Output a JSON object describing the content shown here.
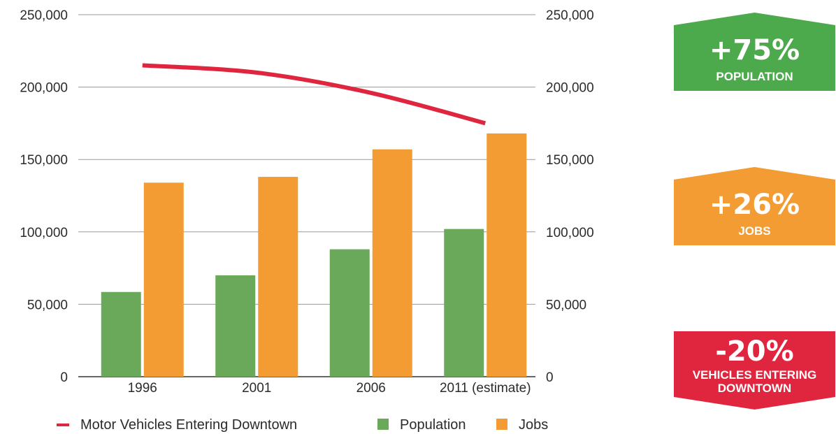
{
  "chart_data": {
    "type": "bar",
    "categories": [
      "1996",
      "2001",
      "2006",
      "2011 (estimate)"
    ],
    "series": [
      {
        "name": "Population",
        "kind": "bar",
        "color": "#6aa85a",
        "values": [
          58500,
          70000,
          88000,
          102000
        ]
      },
      {
        "name": "Jobs",
        "kind": "bar",
        "color": "#f39c33",
        "values": [
          134000,
          138000,
          157000,
          168000
        ]
      },
      {
        "name": "Motor Vehicles Entering Downtown",
        "kind": "line",
        "color": "#e0263f",
        "values": [
          215000,
          210000,
          196000,
          175000
        ]
      }
    ],
    "ylim": [
      0,
      250000
    ],
    "y_ticks": [
      "0",
      "50,000",
      "100,000",
      "150,000",
      "200,000",
      "250,000"
    ],
    "y_tick_values": [
      0,
      50000,
      100000,
      150000,
      200000,
      250000
    ],
    "right_axis": true,
    "grid": true,
    "legend": {
      "position": "bottom",
      "items": [
        {
          "label": "Motor Vehicles Entering Downtown",
          "color": "#e0263f",
          "marker": "line"
        },
        {
          "label": "Population",
          "color": "#6aa85a",
          "marker": "square"
        },
        {
          "label": "Jobs",
          "color": "#f39c33",
          "marker": "square"
        }
      ]
    }
  },
  "badges": [
    {
      "value": "+75%",
      "lines": [
        "POPULATION"
      ],
      "color": "#4caa4c"
    },
    {
      "value": "+26%",
      "lines": [
        "JOBS"
      ],
      "color": "#f39c33"
    },
    {
      "value": "-20%",
      "lines": [
        "VEHICLES ENTERING",
        "DOWNTOWN"
      ],
      "color": "#e0263f"
    }
  ]
}
